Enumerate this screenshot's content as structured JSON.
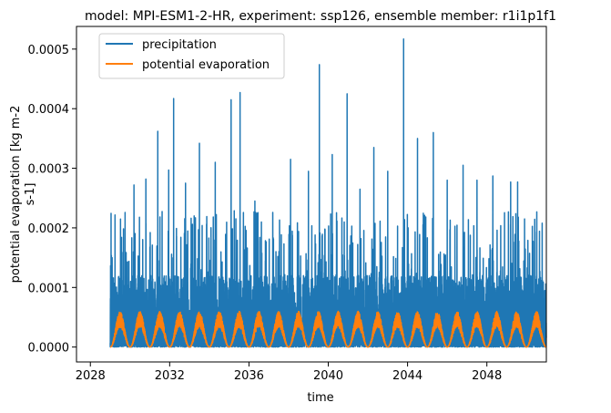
{
  "chart_data": {
    "type": "line",
    "title": "model: MPI-ESM1-2-HR, experiment: ssp126, ensemble member: r1i1p1f1",
    "xlabel": "time",
    "ylabel_lines": [
      "potential evaporation [kg m-2",
      "s-1]"
    ],
    "xlim": [
      2027.3,
      2051.0
    ],
    "ylim": [
      -2.5e-05,
      0.000538
    ],
    "x_ticks": [
      2028,
      2032,
      2036,
      2040,
      2044,
      2048
    ],
    "x_tick_labels": [
      "2028",
      "2032",
      "2036",
      "2040",
      "2044",
      "2048"
    ],
    "y_ticks": [
      0,
      0.0001,
      0.0002,
      0.0003,
      0.0004,
      0.0005
    ],
    "y_tick_labels": [
      "0.0000",
      "0.0001",
      "0.0002",
      "0.0003",
      "0.0004",
      "0.0005"
    ],
    "grid": false,
    "legend_position": "upper-left",
    "time_range": [
      "2029-01-01",
      "2050-12-31"
    ],
    "series": [
      {
        "name": "precipitation",
        "color": "#1f77b4",
        "sampling": "daily",
        "typical_range": [
          0,
          0.00012
        ],
        "peaks": [
          {
            "x": 2029.1,
            "y": 0.00015
          },
          {
            "x": 2029.75,
            "y": 0.000226
          },
          {
            "x": 2030.2,
            "y": 0.000272
          },
          {
            "x": 2030.8,
            "y": 0.000282
          },
          {
            "x": 2031.4,
            "y": 0.000362
          },
          {
            "x": 2031.95,
            "y": 0.000297
          },
          {
            "x": 2032.2,
            "y": 0.000417
          },
          {
            "x": 2032.8,
            "y": 0.000275
          },
          {
            "x": 2033.5,
            "y": 0.000342
          },
          {
            "x": 2034.3,
            "y": 0.00031
          },
          {
            "x": 2035.1,
            "y": 0.000415
          },
          {
            "x": 2035.55,
            "y": 0.000427
          },
          {
            "x": 2036.3,
            "y": 0.000245
          },
          {
            "x": 2037.2,
            "y": 0.000226
          },
          {
            "x": 2038.1,
            "y": 0.000315
          },
          {
            "x": 2039.0,
            "y": 0.000295
          },
          {
            "x": 2039.55,
            "y": 0.000474
          },
          {
            "x": 2040.2,
            "y": 0.000323
          },
          {
            "x": 2040.95,
            "y": 0.000425
          },
          {
            "x": 2041.6,
            "y": 0.000265
          },
          {
            "x": 2042.3,
            "y": 0.000335
          },
          {
            "x": 2043.0,
            "y": 0.000295
          },
          {
            "x": 2043.8,
            "y": 0.000517
          },
          {
            "x": 2044.5,
            "y": 0.00035
          },
          {
            "x": 2045.3,
            "y": 0.00036
          },
          {
            "x": 2046.0,
            "y": 0.00028
          },
          {
            "x": 2046.8,
            "y": 0.000305
          },
          {
            "x": 2047.5,
            "y": 0.00028
          },
          {
            "x": 2048.3,
            "y": 0.000287
          },
          {
            "x": 2049.2,
            "y": 0.000277
          },
          {
            "x": 2049.55,
            "y": 0.000277
          },
          {
            "x": 2049.9,
            "y": 0.000215
          }
        ]
      },
      {
        "name": "potential evaporation",
        "color": "#ff7f0e",
        "sampling": "daily",
        "seasonal_cycle": {
          "period_years": 1,
          "min": 0,
          "max": 6e-05,
          "peak_phase": "mid-year"
        }
      }
    ]
  }
}
